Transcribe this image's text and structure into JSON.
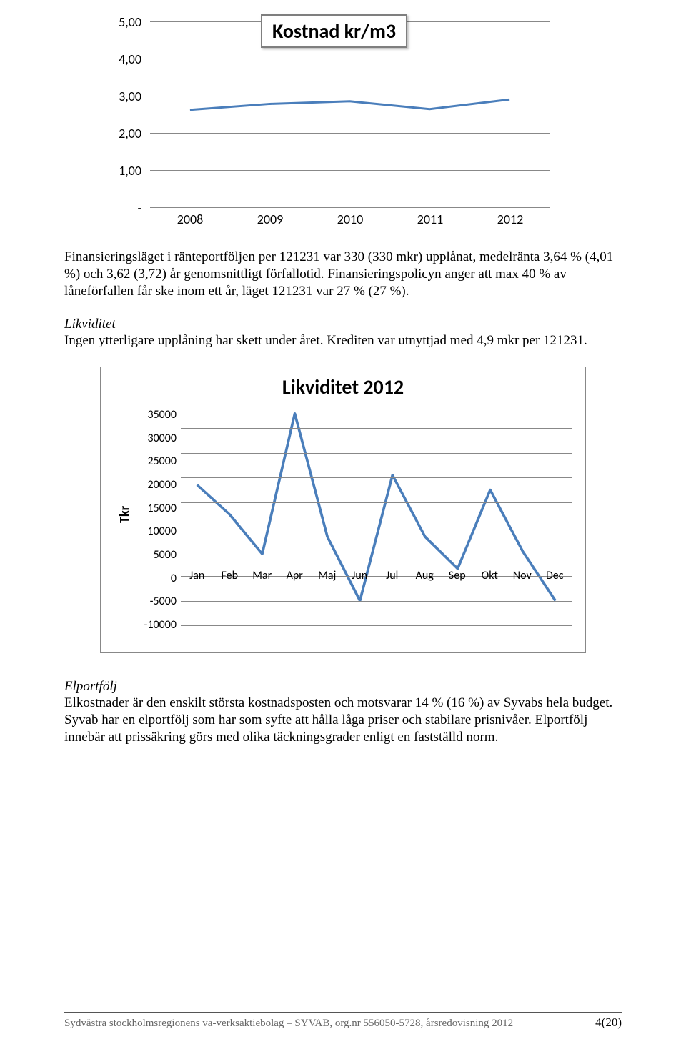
{
  "chart1": {
    "type": "line",
    "title": "Kostnad  kr/m3",
    "title_fontsize": 28,
    "categories": [
      "2008",
      "2009",
      "2010",
      "2011",
      "2012"
    ],
    "values": [
      2.62,
      2.78,
      2.85,
      2.64,
      2.9
    ],
    "ylim": [
      0,
      5
    ],
    "ytick_step": 1,
    "ytick_labels": [
      "-",
      "1,00",
      "2,00",
      "3,00",
      "4,00",
      "5,00"
    ],
    "line_color": "#4a7ebb",
    "line_width": 3,
    "grid_color": "#888888",
    "background_color": "#ffffff",
    "tick_fontsize": 18,
    "font_family": "Calibri"
  },
  "para1": "Finansieringsläget i ränteportföljen per 121231 var 330 (330 mkr) upplånat, medelränta 3,64 % (4,01 %) och 3,62 (3,72) år genomsnittligt förfallotid. Finansieringspolicyn anger att max 40 % av låneförfallen får ske inom ett år, läget 121231 var 27 % (27 %).",
  "heading1": "Likviditet",
  "para2": "Ingen ytterligare upplåning har skett under året. Krediten var utnyttjad med 4,9 mkr per 121231.",
  "chart2": {
    "type": "line",
    "title": "Likviditet 2012",
    "title_fontsize": 28,
    "axis_title": "Tkr",
    "categories": [
      "Jan",
      "Feb",
      "Mar",
      "Apr",
      "Maj",
      "Jun",
      "Jul",
      "Aug",
      "Sep",
      "Okt",
      "Nov",
      "Dec"
    ],
    "values": [
      18500,
      12500,
      4500,
      33000,
      8000,
      -5000,
      20500,
      8000,
      1500,
      17500,
      5000,
      -5000
    ],
    "ylim": [
      -10000,
      35000
    ],
    "ytick_step": 5000,
    "ytick_labels": [
      "35000",
      "30000",
      "25000",
      "20000",
      "15000",
      "10000",
      "5000",
      "0",
      "-5000",
      "-10000"
    ],
    "line_color": "#4a7ebb",
    "line_width": 3.5,
    "grid_color": "#888888",
    "background_color": "#ffffff",
    "tick_fontsize": 16,
    "font_family": "Calibri"
  },
  "heading2": "Elportfölj",
  "para3": "Elkostnader är den enskilt största kostnadsposten och motsvarar 14 % (16 %) av Syvabs hela budget. Syvab har en elportfölj som har som syfte att hålla låga priser och stabilare prisnivåer. Elportfölj innebär att prissäkring görs med olika täckningsgrader enligt en fastställd norm.",
  "footer": {
    "left": "Sydvästra stockholmsregionens va-verksaktiebolag – SYVAB, org.nr 556050-5728, årsredovisning 2012",
    "page": "4(20)"
  }
}
